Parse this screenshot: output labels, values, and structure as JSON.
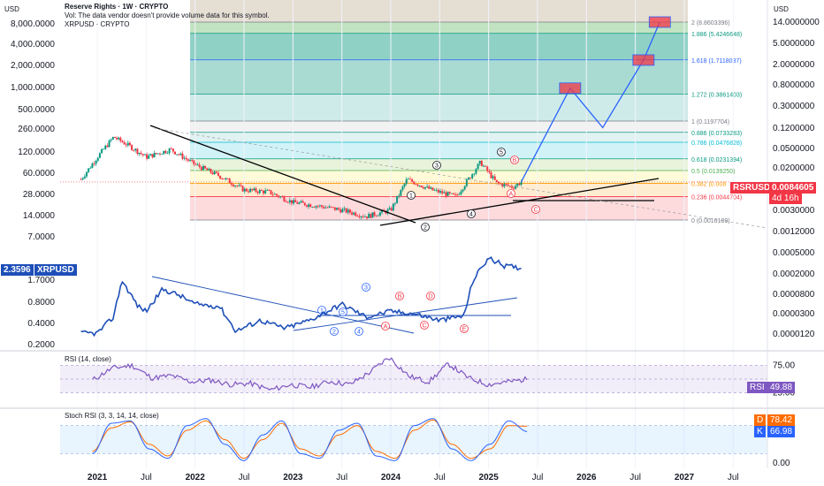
{
  "header": {
    "title": "Reserve Rights · 1W · CRYPTO",
    "volume_note": "Vol: The data vendor doesn't provide volume data for this symbol.",
    "overlay_symbol": "XRPUSD · CRYPTO",
    "currency_left": "USD",
    "currency_right": "USD"
  },
  "price_tags": {
    "rsr_symbol": "RSRUSD",
    "rsr_price": "0.0084605",
    "rsr_countdown": "4d 16h",
    "xrp_price": "2.3596",
    "xrp_symbol": "XRPUSD"
  },
  "indicators": {
    "rsi_title": "RSI (14, close)",
    "rsi_tag": "RSI",
    "rsi_value": "49.88",
    "stoch_title": "Stoch RSI (3, 3, 14, 14, close)",
    "stoch_d_tag": "D",
    "stoch_d_value": "78.42",
    "stoch_k_tag": "K",
    "stoch_k_value": "66.98"
  },
  "colors": {
    "candle_up": "#089981",
    "candle_down": "#f23645",
    "xrp_line": "#1e4fb8",
    "rsi_line": "#7e57c2",
    "stoch_k": "#2962ff",
    "stoch_d": "#ff6d00",
    "projection": "#2962ff",
    "price_tag": "#f23645"
  },
  "chart_data": [
    {
      "type": "candlestick",
      "series_name": "RSRUSD",
      "y_scale": "log",
      "x_ticks": [
        "2021",
        "Jul",
        "2022",
        "Jul",
        "2023",
        "Jul",
        "2024",
        "Jul",
        "2025",
        "Jul",
        "2026",
        "Jul",
        "2027",
        "Jul"
      ],
      "left_ticks": [
        "8,000.0000",
        "4,000.0000",
        "2,000.0000",
        "1,000.0000",
        "500.0000",
        "260.0000",
        "120.0000",
        "60.0000",
        "28.0000",
        "14.0000",
        "7.0000",
        "1.7000",
        "0.8000",
        "0.4000",
        "0.2000"
      ],
      "right_ticks": [
        "14.0000000",
        "5.0000000",
        "2.0000000",
        "0.8000000",
        "0.3000000",
        "0.1200000",
        "0.0500000",
        "0.0200000",
        "0.0030000",
        "0.0012000",
        "0.0005000",
        "0.0002000",
        "0.0000800",
        "0.0000300",
        "0.0000120"
      ],
      "approx_close_path": [
        {
          "x": "2020-11",
          "y": 0.0095
        },
        {
          "x": "2021-01",
          "y": 0.025
        },
        {
          "x": "2021-03",
          "y": 0.06
        },
        {
          "x": "2021-05",
          "y": 0.04
        },
        {
          "x": "2021-07",
          "y": 0.025
        },
        {
          "x": "2021-10",
          "y": 0.035
        },
        {
          "x": "2022-01",
          "y": 0.018
        },
        {
          "x": "2022-04",
          "y": 0.011
        },
        {
          "x": "2022-07",
          "y": 0.006
        },
        {
          "x": "2022-10",
          "y": 0.0055
        },
        {
          "x": "2023-01",
          "y": 0.0035
        },
        {
          "x": "2023-04",
          "y": 0.003
        },
        {
          "x": "2023-07",
          "y": 0.0025
        },
        {
          "x": "2023-10",
          "y": 0.0019
        },
        {
          "x": "2024-01",
          "y": 0.0025
        },
        {
          "x": "2024-03",
          "y": 0.0095
        },
        {
          "x": "2024-06",
          "y": 0.006
        },
        {
          "x": "2024-09",
          "y": 0.0045
        },
        {
          "x": "2024-12",
          "y": 0.02
        },
        {
          "x": "2025-02",
          "y": 0.008
        },
        {
          "x": "2025-04",
          "y": 0.0068
        },
        {
          "x": "2025-05",
          "y": 0.0085
        }
      ],
      "fib_levels": [
        {
          "label": "0 (0.0016189)",
          "price": 0.0016189
        },
        {
          "label": "0.236 (0.0044704)",
          "price": 0.0044704
        },
        {
          "label": "0.382 (0.008",
          "price": 0.008
        },
        {
          "label": "0.5 (0.0139250)",
          "price": 0.013925
        },
        {
          "label": "0.618 (0.0231394)",
          "price": 0.0231394
        },
        {
          "label": "0.786 (0.0476828)",
          "price": 0.0476828
        },
        {
          "label": "0.886 (0.0733283)",
          "price": 0.0733283
        },
        {
          "label": "1 (0.1197704)",
          "price": 0.1197704
        },
        {
          "label": "1.272 (0.3861403)",
          "price": 0.3861403
        },
        {
          "label": "1.618 (1.7118037)",
          "price": 1.7118037
        },
        {
          "label": "1.886 (5.4246648)",
          "price": 5.4246648
        },
        {
          "label": "2 (8.8603396)",
          "price": 8.8603396
        }
      ],
      "wave_labels_rsr": [
        "1",
        "2",
        "3",
        "4",
        "5",
        "A",
        "B",
        "C"
      ],
      "projection_path": [
        {
          "x": "2025-05",
          "y": 0.0085
        },
        {
          "x": "2025-11",
          "y": 0.5
        },
        {
          "x": "2026-03",
          "y": 0.09
        },
        {
          "x": "2026-08",
          "y": 1.7
        },
        {
          "x": "2026-10",
          "y": 8.86
        }
      ]
    },
    {
      "type": "line",
      "series_name": "XRPUSD",
      "approx_path": [
        {
          "x": "2020-11",
          "y": 0.3
        },
        {
          "x": "2021-01",
          "y": 0.3
        },
        {
          "x": "2021-03",
          "y": 0.5
        },
        {
          "x": "2021-04",
          "y": 1.6
        },
        {
          "x": "2021-06",
          "y": 0.7
        },
        {
          "x": "2021-07",
          "y": 0.6
        },
        {
          "x": "2021-09",
          "y": 1.2
        },
        {
          "x": "2021-11",
          "y": 1.0
        },
        {
          "x": "2022-01",
          "y": 0.75
        },
        {
          "x": "2022-04",
          "y": 0.7
        },
        {
          "x": "2022-06",
          "y": 0.32
        },
        {
          "x": "2022-09",
          "y": 0.45
        },
        {
          "x": "2022-12",
          "y": 0.35
        },
        {
          "x": "2023-03",
          "y": 0.45
        },
        {
          "x": "2023-07",
          "y": 0.75
        },
        {
          "x": "2023-10",
          "y": 0.5
        },
        {
          "x": "2024-01",
          "y": 0.6
        },
        {
          "x": "2024-04",
          "y": 0.55
        },
        {
          "x": "2024-07",
          "y": 0.45
        },
        {
          "x": "2024-10",
          "y": 0.52
        },
        {
          "x": "2024-11",
          "y": 1.5
        },
        {
          "x": "2024-12",
          "y": 2.3
        },
        {
          "x": "2025-01",
          "y": 3.2
        },
        {
          "x": "2025-03",
          "y": 2.5
        },
        {
          "x": "2025-05",
          "y": 2.36
        }
      ],
      "wave_labels_xrp": [
        "1",
        "2",
        "3",
        "4",
        "5",
        "A",
        "B",
        "C",
        "D",
        "E"
      ]
    },
    {
      "type": "line",
      "series_name": "RSI (14, close)",
      "y_ticks": [
        "75.00",
        "25.00"
      ],
      "ylim": [
        0,
        100
      ],
      "values_approx": [
        48,
        70,
        75,
        52,
        56,
        45,
        48,
        40,
        42,
        30,
        40,
        35,
        46,
        40,
        62,
        90,
        55,
        45,
        78,
        52,
        40,
        45,
        49.88
      ]
    },
    {
      "type": "line",
      "series_name": "Stoch RSI (3, 3, 14, 14, close)",
      "y_ticks": [
        "0.00"
      ],
      "ylim": [
        0,
        100
      ],
      "k_values_approx": [
        20,
        85,
        90,
        30,
        10,
        80,
        95,
        40,
        5,
        60,
        90,
        20,
        10,
        70,
        85,
        15,
        5,
        80,
        95,
        30,
        5,
        40,
        90,
        66.98
      ],
      "d_values_approx": [
        25,
        75,
        88,
        40,
        15,
        70,
        90,
        50,
        10,
        50,
        85,
        30,
        15,
        60,
        80,
        25,
        10,
        70,
        92,
        40,
        10,
        30,
        80,
        78.42
      ]
    }
  ]
}
